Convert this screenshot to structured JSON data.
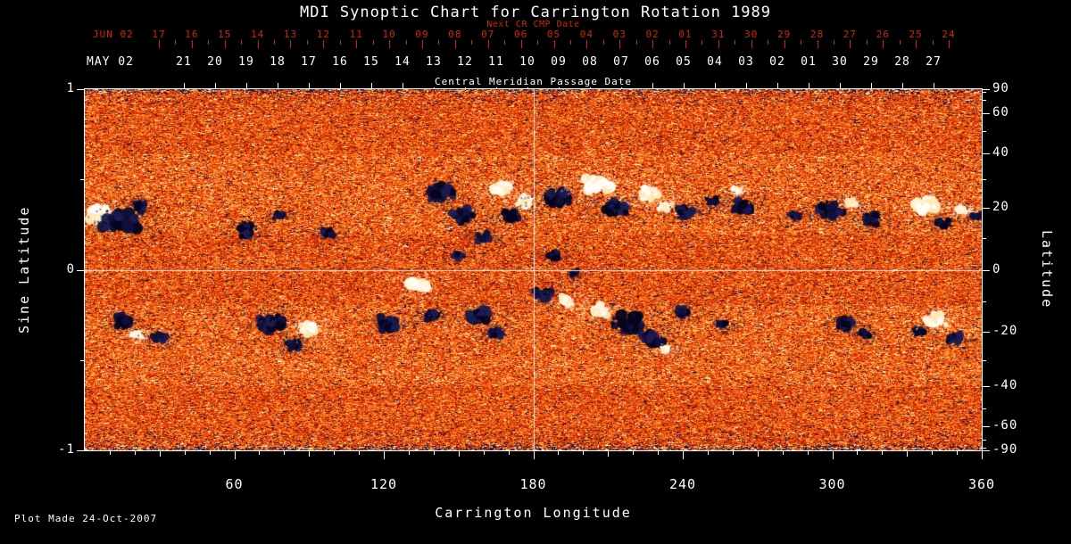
{
  "page": {
    "background": "#000000",
    "accent_red": "#cf2600",
    "foreground": "#ffffff"
  },
  "chart": {
    "footer": "Plot Made 24-Oct-2007"
  },
  "cmp_axis": {
    "next_cr_label": "Next CR CMP Date",
    "next_month_label": "JUN 02",
    "next_days": [
      "17",
      "16",
      "15",
      "14",
      "13",
      "12",
      "11",
      "10",
      "09",
      "08",
      "07",
      "06",
      "05",
      "04",
      "03",
      "02",
      "01",
      "31",
      "30",
      "29",
      "28",
      "27",
      "26",
      "25",
      "24"
    ],
    "month_label": "MAY 02",
    "days": [
      "21",
      "20",
      "19",
      "18",
      "17",
      "16",
      "15",
      "14",
      "13",
      "12",
      "11",
      "10",
      "09",
      "08",
      "07",
      "06",
      "05",
      "04",
      "03",
      "02",
      "01",
      "30",
      "29",
      "28",
      "27"
    ],
    "axis_label": "Central Meridian Passage Date"
  },
  "chart_data": {
    "type": "heatmap",
    "title": "MDI Synoptic Chart for Carrington Rotation 1989",
    "xlabel": "Carrington Longitude",
    "ylabel_left": "Sine Latitude",
    "ylabel_right": "Latitude",
    "x_range": [
      0,
      360
    ],
    "sine_latitude_range": [
      -1,
      1
    ],
    "x_ticks": [
      "60",
      "120",
      "180",
      "240",
      "300",
      "360"
    ],
    "left_ticks": [
      {
        "label": "1",
        "sin": 1
      },
      {
        "label": "0",
        "sin": 0
      },
      {
        "label": "-1",
        "sin": -1
      }
    ],
    "left_minor_sines": [
      0.5,
      -0.5
    ],
    "right_ticks": [
      {
        "label": "90",
        "lat": 90
      },
      {
        "label": "60",
        "lat": 60
      },
      {
        "label": "40",
        "lat": 40
      },
      {
        "label": "20",
        "lat": 20
      },
      {
        "label": "0",
        "lat": 0
      },
      {
        "label": "-20",
        "lat": -20
      },
      {
        "label": "-40",
        "lat": -40
      },
      {
        "label": "-60",
        "lat": -60
      },
      {
        "label": "-90",
        "lat": -90
      }
    ],
    "right_minor_lats": [
      80,
      70,
      50,
      30,
      10,
      -10,
      -30,
      -50,
      -70,
      -80
    ],
    "grid_lines": {
      "longitude": 180,
      "sine_latitude": 0
    },
    "description": "Full-surface photospheric magnetic field map for Carrington rotation 1989. Granular orange/red background noise with bipolar active regions concentrated in two activity belts near sine latitude +/-0.3; white patches are positive magnetic polarity, dark blue/black patches are negative polarity. White reference lines cross at longitude 180 and the equator.",
    "colormap": {
      "background_field": [
        "#1e1950",
        "#8c1400",
        "#cc2d05",
        "#f0550f",
        "#ff8228",
        "#ffaa44",
        "#ffd98c",
        "#fff5dc"
      ],
      "negative_polarity": [
        "#05051e",
        "#10103a",
        "#1b1b50"
      ],
      "positive_polarity": [
        "#fff6e0",
        "#fffdf5",
        "#ffe9b8"
      ]
    },
    "active_regions": [
      {
        "lon": 6,
        "sin_lat": 0.3,
        "polarity": "positive",
        "size": 12
      },
      {
        "lon": 14,
        "sin_lat": 0.27,
        "polarity": "negative",
        "size": 16
      },
      {
        "lon": 22,
        "sin_lat": 0.35,
        "polarity": "negative",
        "size": 8
      },
      {
        "lon": 65,
        "sin_lat": 0.22,
        "polarity": "negative",
        "size": 10
      },
      {
        "lon": 78,
        "sin_lat": 0.3,
        "polarity": "negative",
        "size": 6
      },
      {
        "lon": 98,
        "sin_lat": 0.2,
        "polarity": "negative",
        "size": 7
      },
      {
        "lon": 143,
        "sin_lat": 0.42,
        "polarity": "negative",
        "size": 12
      },
      {
        "lon": 152,
        "sin_lat": 0.3,
        "polarity": "negative",
        "size": 10
      },
      {
        "lon": 160,
        "sin_lat": 0.18,
        "polarity": "negative",
        "size": 7
      },
      {
        "lon": 167,
        "sin_lat": 0.45,
        "polarity": "positive",
        "size": 10
      },
      {
        "lon": 176,
        "sin_lat": 0.38,
        "polarity": "positive",
        "size": 8
      },
      {
        "lon": 171,
        "sin_lat": 0.3,
        "polarity": "negative",
        "size": 9
      },
      {
        "lon": 190,
        "sin_lat": 0.4,
        "polarity": "negative",
        "size": 13
      },
      {
        "lon": 205,
        "sin_lat": 0.47,
        "polarity": "positive",
        "size": 13
      },
      {
        "lon": 213,
        "sin_lat": 0.34,
        "polarity": "negative",
        "size": 11
      },
      {
        "lon": 226,
        "sin_lat": 0.42,
        "polarity": "positive",
        "size": 9
      },
      {
        "lon": 233,
        "sin_lat": 0.35,
        "polarity": "positive",
        "size": 7
      },
      {
        "lon": 241,
        "sin_lat": 0.32,
        "polarity": "negative",
        "size": 9
      },
      {
        "lon": 252,
        "sin_lat": 0.38,
        "polarity": "negative",
        "size": 6
      },
      {
        "lon": 264,
        "sin_lat": 0.35,
        "polarity": "negative",
        "size": 10
      },
      {
        "lon": 262,
        "sin_lat": 0.44,
        "polarity": "positive",
        "size": 5
      },
      {
        "lon": 285,
        "sin_lat": 0.3,
        "polarity": "negative",
        "size": 6
      },
      {
        "lon": 300,
        "sin_lat": 0.33,
        "polarity": "negative",
        "size": 12
      },
      {
        "lon": 308,
        "sin_lat": 0.37,
        "polarity": "positive",
        "size": 6
      },
      {
        "lon": 315,
        "sin_lat": 0.28,
        "polarity": "negative",
        "size": 9
      },
      {
        "lon": 338,
        "sin_lat": 0.36,
        "polarity": "positive",
        "size": 12
      },
      {
        "lon": 345,
        "sin_lat": 0.26,
        "polarity": "negative",
        "size": 8
      },
      {
        "lon": 352,
        "sin_lat": 0.33,
        "polarity": "positive",
        "size": 6
      },
      {
        "lon": 358,
        "sin_lat": 0.3,
        "polarity": "negative",
        "size": 6
      },
      {
        "lon": 16,
        "sin_lat": -0.28,
        "polarity": "negative",
        "size": 9
      },
      {
        "lon": 21,
        "sin_lat": -0.36,
        "polarity": "positive",
        "size": 5
      },
      {
        "lon": 30,
        "sin_lat": -0.38,
        "polarity": "negative",
        "size": 8
      },
      {
        "lon": 75,
        "sin_lat": -0.3,
        "polarity": "negative",
        "size": 13
      },
      {
        "lon": 83,
        "sin_lat": -0.42,
        "polarity": "negative",
        "size": 8
      },
      {
        "lon": 90,
        "sin_lat": -0.33,
        "polarity": "positive",
        "size": 9
      },
      {
        "lon": 122,
        "sin_lat": -0.3,
        "polarity": "negative",
        "size": 10
      },
      {
        "lon": 133,
        "sin_lat": -0.08,
        "polarity": "positive",
        "size": 10
      },
      {
        "lon": 140,
        "sin_lat": -0.25,
        "polarity": "negative",
        "size": 7
      },
      {
        "lon": 158,
        "sin_lat": -0.25,
        "polarity": "negative",
        "size": 11
      },
      {
        "lon": 165,
        "sin_lat": -0.35,
        "polarity": "negative",
        "size": 8
      },
      {
        "lon": 184,
        "sin_lat": -0.14,
        "polarity": "negative",
        "size": 9
      },
      {
        "lon": 193,
        "sin_lat": -0.17,
        "polarity": "positive",
        "size": 7
      },
      {
        "lon": 207,
        "sin_lat": -0.22,
        "polarity": "positive",
        "size": 10
      },
      {
        "lon": 218,
        "sin_lat": -0.3,
        "polarity": "negative",
        "size": 14
      },
      {
        "lon": 228,
        "sin_lat": -0.38,
        "polarity": "negative",
        "size": 10
      },
      {
        "lon": 233,
        "sin_lat": -0.44,
        "polarity": "positive",
        "size": 5
      },
      {
        "lon": 240,
        "sin_lat": -0.24,
        "polarity": "negative",
        "size": 8
      },
      {
        "lon": 256,
        "sin_lat": -0.3,
        "polarity": "negative",
        "size": 6
      },
      {
        "lon": 305,
        "sin_lat": -0.3,
        "polarity": "negative",
        "size": 9
      },
      {
        "lon": 313,
        "sin_lat": -0.36,
        "polarity": "negative",
        "size": 6
      },
      {
        "lon": 335,
        "sin_lat": -0.34,
        "polarity": "negative",
        "size": 6
      },
      {
        "lon": 342,
        "sin_lat": -0.27,
        "polarity": "positive",
        "size": 10
      },
      {
        "lon": 349,
        "sin_lat": -0.38,
        "polarity": "negative",
        "size": 8
      },
      {
        "lon": 150,
        "sin_lat": 0.08,
        "polarity": "negative",
        "size": 6
      },
      {
        "lon": 188,
        "sin_lat": 0.08,
        "polarity": "negative",
        "size": 7
      },
      {
        "lon": 196,
        "sin_lat": -0.02,
        "polarity": "negative",
        "size": 5
      }
    ]
  }
}
